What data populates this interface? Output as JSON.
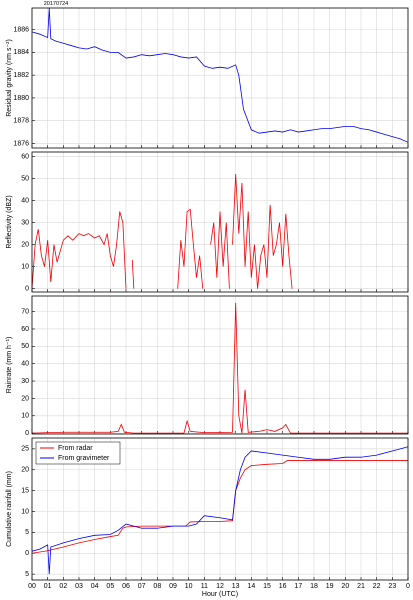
{
  "chart_data": [
    {
      "type": "line",
      "y_label": "Residual gravity (nm s⁻²)",
      "annotation": "20170724",
      "xlim": [
        0,
        24
      ],
      "ylim": [
        1875.6,
        1887.9
      ],
      "yticks": [
        1876,
        1878,
        1880,
        1882,
        1884,
        1886
      ],
      "grid": true,
      "series": [
        {
          "name": "From gravimeter",
          "color": "#0000ee",
          "x": [
            0,
            0.5,
            1,
            1.1,
            1.2,
            1.5,
            2,
            2.5,
            3,
            3.5,
            4,
            4.5,
            5,
            5.5,
            6,
            6.5,
            7,
            7.5,
            8,
            8.5,
            9,
            9.5,
            10,
            10.5,
            11,
            11.5,
            12,
            12.5,
            13,
            13.2,
            13.5,
            14,
            14.5,
            15,
            15.5,
            16,
            16.5,
            17,
            17.5,
            18,
            18.5,
            19,
            19.5,
            20,
            20.5,
            21,
            21.5,
            22,
            22.5,
            23,
            23.5,
            24
          ],
          "values": [
            1885.8,
            1885.6,
            1885.3,
            1887.9,
            1885.2,
            1885.0,
            1884.8,
            1884.6,
            1884.4,
            1884.3,
            1884.5,
            1884.2,
            1884.0,
            1884.0,
            1883.5,
            1883.6,
            1883.8,
            1883.7,
            1883.8,
            1883.9,
            1883.8,
            1883.6,
            1883.5,
            1883.6,
            1882.8,
            1882.6,
            1882.7,
            1882.6,
            1882.9,
            1882.0,
            1879.0,
            1877.2,
            1876.9,
            1877.0,
            1877.1,
            1877.0,
            1877.2,
            1877.0,
            1877.1,
            1877.2,
            1877.3,
            1877.3,
            1877.4,
            1877.5,
            1877.5,
            1877.3,
            1877.2,
            1877.0,
            1876.8,
            1876.6,
            1876.4,
            1876.1
          ]
        }
      ]
    },
    {
      "type": "line",
      "y_label": "Reflectivity (dBZ)",
      "xlim": [
        0,
        24
      ],
      "ylim": [
        -1.5,
        62
      ],
      "yticks": [
        0,
        10,
        20,
        30,
        40,
        50,
        60
      ],
      "grid": true,
      "series": [
        {
          "name": "From radar",
          "color": "#ee0000",
          "x": [
            0,
            0.2,
            0.4,
            0.6,
            0.8,
            1.0,
            1.2,
            1.4,
            1.6,
            1.8,
            2.0,
            2.3,
            2.6,
            3.0,
            3.3,
            3.6,
            4.0,
            4.3,
            4.6,
            4.8,
            5.0,
            5.2,
            5.4,
            5.6,
            5.8,
            6.0,
            6.2,
            6.4,
            6.5,
            8,
            9.3,
            9.5,
            9.7,
            9.9,
            10.1,
            10.3,
            10.5,
            10.7,
            10.9,
            11.2,
            11.4,
            11.6,
            11.8,
            12.0,
            12.2,
            12.4,
            12.6,
            12.7,
            12.8,
            13.0,
            13.2,
            13.4,
            13.6,
            13.8,
            14.0,
            14.2,
            14.4,
            14.6,
            14.8,
            15.0,
            15.2,
            15.4,
            15.6,
            15.8,
            16.0,
            16.2,
            16.4,
            16.6
          ],
          "values": [
            0,
            20,
            27,
            15,
            10,
            22,
            3,
            20,
            12,
            17,
            22,
            24,
            22,
            25,
            24,
            25,
            23,
            24,
            20,
            25,
            15,
            10,
            20,
            35,
            30,
            0,
            null,
            13,
            0,
            null,
            0,
            22,
            10,
            35,
            36,
            20,
            5,
            15,
            0,
            null,
            20,
            30,
            5,
            35,
            10,
            30,
            0,
            null,
            20,
            52,
            25,
            48,
            10,
            35,
            5,
            20,
            0,
            15,
            20,
            5,
            38,
            15,
            20,
            30,
            10,
            34,
            15,
            0
          ]
        }
      ]
    },
    {
      "type": "line",
      "y_label": "Rainrate (mm h⁻¹)",
      "xlim": [
        0,
        24
      ],
      "ylim": [
        -0.5,
        79
      ],
      "yticks": [
        0,
        10,
        20,
        30,
        40,
        50,
        60,
        70
      ],
      "grid": true,
      "series": [
        {
          "name": "From radar",
          "color": "#ee0000",
          "x": [
            0,
            1,
            2,
            3,
            4,
            5,
            5.5,
            5.7,
            5.9,
            6.5,
            9.7,
            9.9,
            10.1,
            11,
            12.8,
            13.0,
            13.2,
            13.4,
            13.6,
            13.8,
            14.5,
            15,
            15.5,
            16,
            16.2,
            16.5,
            24
          ],
          "values": [
            0,
            0.3,
            0.5,
            0.5,
            0.5,
            0.5,
            1,
            5,
            0.5,
            0,
            0,
            7,
            1,
            0.3,
            0.5,
            75,
            10,
            0,
            25,
            0.5,
            1,
            2,
            1,
            3,
            5,
            0,
            0
          ]
        }
      ]
    },
    {
      "type": "line",
      "y_label": "Cumulative rainfall (mm)",
      "x_label": "Hour (UTC)",
      "xlim": [
        0,
        24
      ],
      "ylim": [
        -6.4,
        27.6
      ],
      "yticks": [
        {
          "value": -5,
          "label": "5"
        },
        0,
        5,
        10,
        15,
        20,
        25
      ],
      "xticks": [
        {
          "value": 0,
          "label": "00"
        },
        {
          "value": 1,
          "label": "01"
        },
        {
          "value": 2,
          "label": "02"
        },
        {
          "value": 3,
          "label": "03"
        },
        {
          "value": 4,
          "label": "04"
        },
        {
          "value": 5,
          "label": "05"
        },
        {
          "value": 6,
          "label": "06"
        },
        {
          "value": 7,
          "label": "07"
        },
        {
          "value": 8,
          "label": "08"
        },
        {
          "value": 9,
          "label": "09"
        },
        10,
        11,
        12,
        13,
        14,
        15,
        16,
        17,
        18,
        19,
        20,
        21,
        22,
        23,
        {
          "value": 24,
          "label": "0"
        }
      ],
      "grid": true,
      "legend": "upper left",
      "series": [
        {
          "name": "From radar",
          "color": "#ee0000",
          "x": [
            0,
            1,
            2,
            3,
            4,
            5,
            5.5,
            5.8,
            6,
            7,
            8,
            9,
            9.8,
            10.1,
            11,
            12,
            12.8,
            13.0,
            13.3,
            13.6,
            14,
            15,
            16,
            16.3,
            17,
            20,
            24
          ],
          "values": [
            0,
            0.6,
            1.5,
            2.5,
            3.3,
            4,
            4.3,
            6,
            6.3,
            6.5,
            6.5,
            6.5,
            6.5,
            7.5,
            7.6,
            7.6,
            7.8,
            15,
            18,
            20,
            21,
            21.3,
            21.5,
            22.2,
            22.2,
            22.2,
            22.2
          ]
        },
        {
          "name": "From gravimeter",
          "color": "#0000ee",
          "x": [
            0,
            0.5,
            1,
            1.1,
            1.2,
            2,
            3,
            4,
            5,
            5.5,
            6,
            6.5,
            7,
            8,
            9,
            10,
            10.5,
            11,
            12,
            12.8,
            13.0,
            13.3,
            13.6,
            14,
            15,
            16,
            17,
            18,
            19,
            20,
            21,
            22,
            23,
            24
          ],
          "values": [
            0.5,
            1,
            2,
            -5,
            1.5,
            2.5,
            3.5,
            4.3,
            4.5,
            5.5,
            7,
            6.5,
            6,
            6,
            6.5,
            6.5,
            7,
            9,
            8.5,
            8,
            15,
            20,
            23,
            24.5,
            24,
            23.5,
            23,
            22.5,
            22.5,
            23,
            23,
            23.5,
            24.5,
            25.5
          ]
        }
      ]
    }
  ]
}
